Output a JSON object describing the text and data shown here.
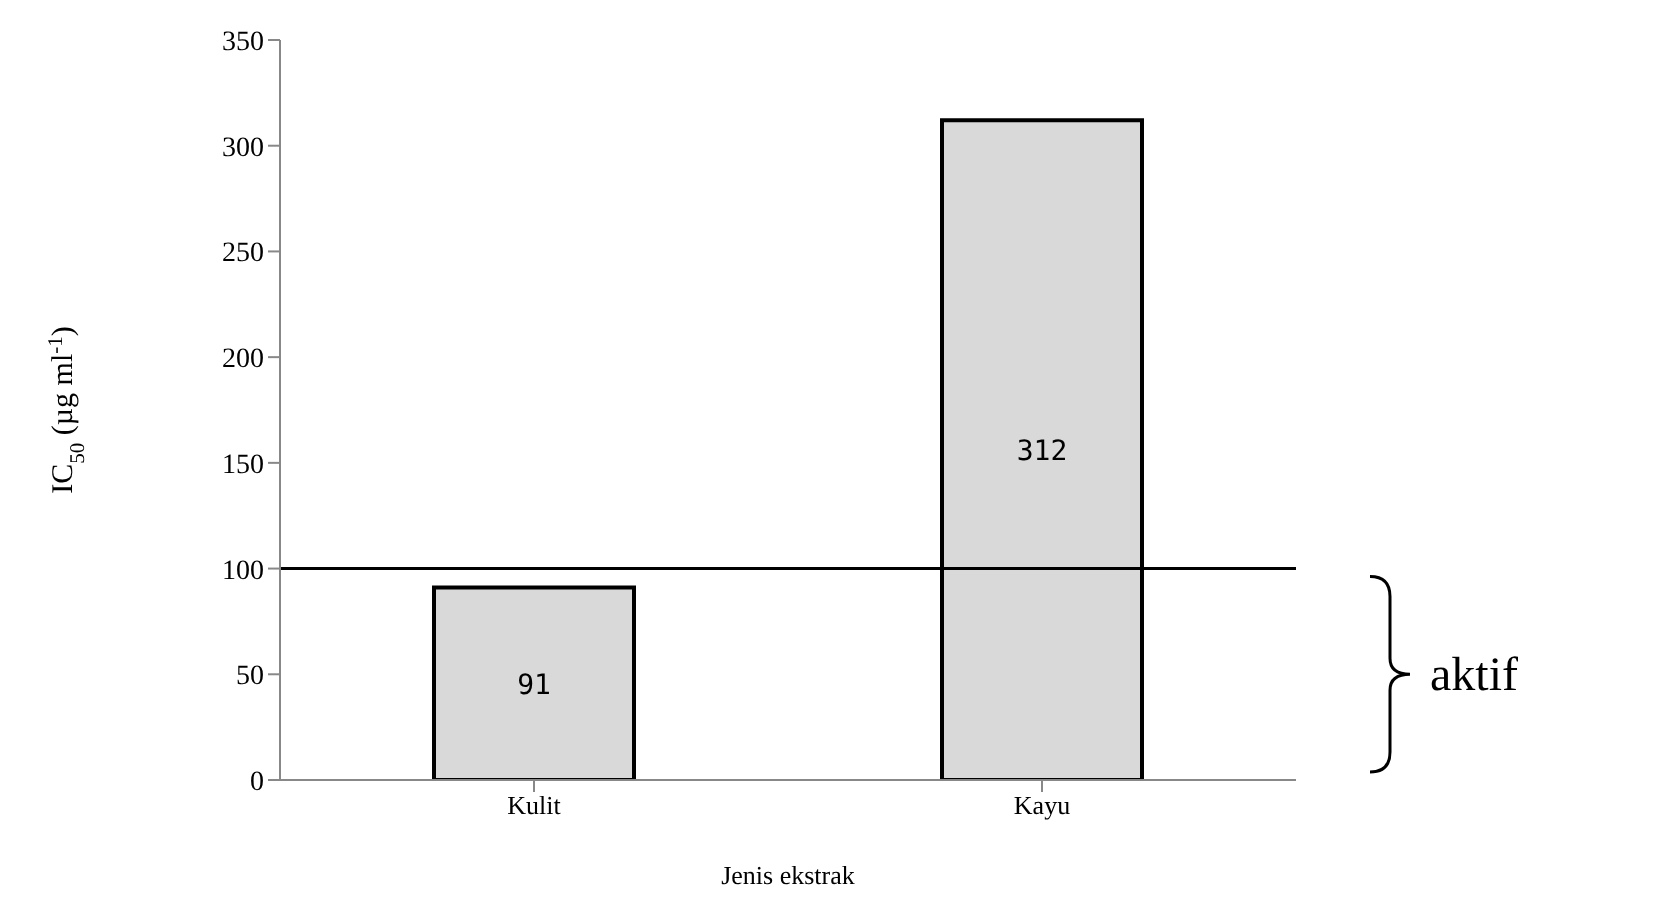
{
  "chart_data": {
    "type": "bar",
    "xlabel": "Jenis ekstrak",
    "ylabel": "IC$_{50}$ (µg ml$^{-1}$)",
    "categories": [
      "Kulit",
      "Kayu"
    ],
    "values": [
      91,
      312
    ],
    "color": "#d9d9d9",
    "ylim": [
      0,
      350
    ],
    "yticks": [
      0,
      50,
      100,
      150,
      200,
      250,
      300,
      350
    ],
    "data_labels": true,
    "ref_lines": [
      {
        "axis": "y",
        "value": 100,
        "color": "#000000"
      }
    ],
    "annotations": [
      "aktif"
    ]
  }
}
